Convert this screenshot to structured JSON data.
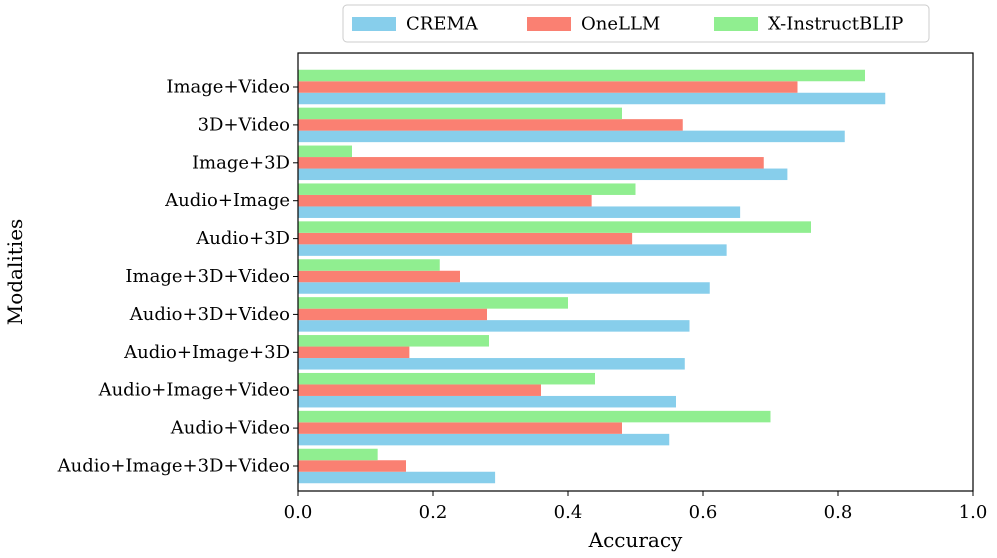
{
  "chart_data": {
    "type": "bar",
    "orientation": "horizontal",
    "title": "",
    "xlabel": "Accuracy",
    "ylabel": "Modalities",
    "xlim": [
      0.0,
      1.0
    ],
    "xticks": [
      "0.0",
      "0.2",
      "0.4",
      "0.6",
      "0.8",
      "1.0"
    ],
    "xtick_values": [
      0.0,
      0.2,
      0.4,
      0.6,
      0.8,
      1.0
    ],
    "grid": false,
    "legend_position": "top-center",
    "categories": [
      "Image+Video",
      "3D+Video",
      "Image+3D",
      "Audio+Image",
      "Audio+3D",
      "Image+3D+Video",
      "Audio+3D+Video",
      "Audio+Image+3D",
      "Audio+Image+Video",
      "Audio+Video",
      "Audio+Image+3D+Video"
    ],
    "series": [
      {
        "name": "CREMA",
        "color": "#87ceeb",
        "values": [
          0.87,
          0.81,
          0.725,
          0.655,
          0.635,
          0.61,
          0.58,
          0.573,
          0.56,
          0.55,
          0.292
        ]
      },
      {
        "name": "OneLLM",
        "color": "#fa8072",
        "values": [
          0.74,
          0.57,
          0.69,
          0.435,
          0.495,
          0.24,
          0.28,
          0.165,
          0.36,
          0.48,
          0.16
        ]
      },
      {
        "name": "X-InstructBLIP",
        "color": "#90ee90",
        "values": [
          0.84,
          0.48,
          0.08,
          0.5,
          0.76,
          0.21,
          0.4,
          0.283,
          0.44,
          0.7,
          0.118
        ]
      }
    ]
  }
}
